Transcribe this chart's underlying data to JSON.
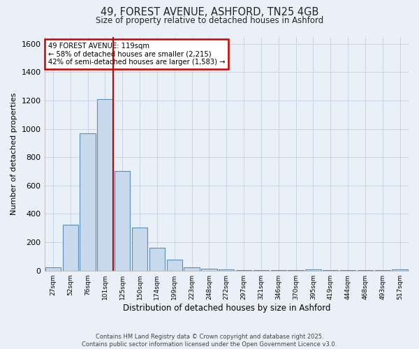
{
  "title_line1": "49, FOREST AVENUE, ASHFORD, TN25 4GB",
  "title_line2": "Size of property relative to detached houses in Ashford",
  "xlabel": "Distribution of detached houses by size in Ashford",
  "ylabel": "Number of detached properties",
  "bar_labels": [
    "27sqm",
    "52sqm",
    "76sqm",
    "101sqm",
    "125sqm",
    "150sqm",
    "174sqm",
    "199sqm",
    "223sqm",
    "248sqm",
    "272sqm",
    "297sqm",
    "321sqm",
    "346sqm",
    "370sqm",
    "395sqm",
    "419sqm",
    "444sqm",
    "468sqm",
    "493sqm",
    "517sqm"
  ],
  "bar_values": [
    22,
    325,
    970,
    1210,
    700,
    305,
    160,
    75,
    22,
    15,
    10,
    5,
    5,
    3,
    2,
    6,
    2,
    2,
    2,
    2,
    8
  ],
  "bar_color": "#c9d9ed",
  "bar_edge_color": "#5b8db8",
  "annotation_line1": "49 FOREST AVENUE: 119sqm",
  "annotation_line2": "← 58% of detached houses are smaller (2,215)",
  "annotation_line3": "42% of semi-detached houses are larger (1,583) →",
  "annotation_box_color": "#ffffff",
  "annotation_box_edge": "#cc0000",
  "vertical_line_color": "#cc0000",
  "vertical_line_x": 3.48,
  "ylim": [
    0,
    1650
  ],
  "yticks": [
    0,
    200,
    400,
    600,
    800,
    1000,
    1200,
    1400,
    1600
  ],
  "grid_color": "#c8d4e8",
  "bg_color": "#eaf0f8",
  "fig_bg_color": "#eaf0f8",
  "footer_line1": "Contains HM Land Registry data © Crown copyright and database right 2025.",
  "footer_line2": "Contains public sector information licensed under the Open Government Licence v3.0."
}
